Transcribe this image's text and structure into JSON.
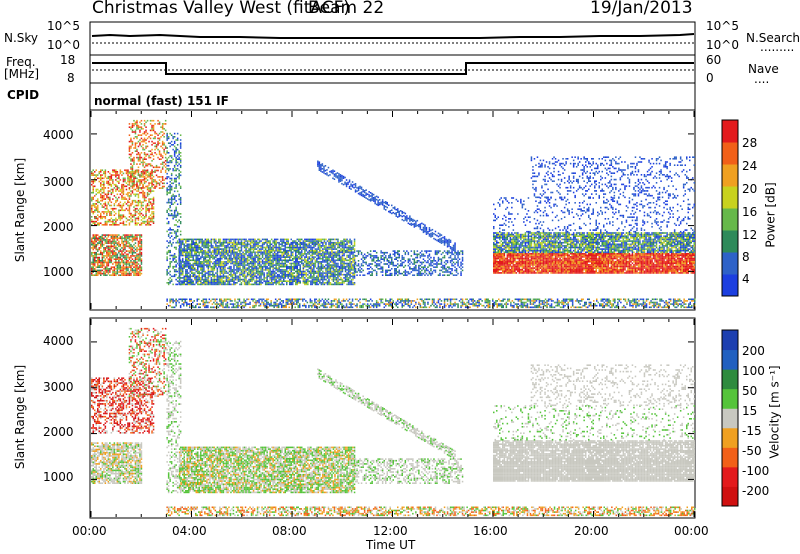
{
  "header": {
    "station": "Christmas Valley West (fitACF)",
    "beam": "Beam 22",
    "date": "19/Jan/2013"
  },
  "top_panels": {
    "nsky": {
      "left_label": "N.Sky",
      "left_ticks": [
        "10^5",
        "10^0"
      ],
      "right_label": "N.Search",
      "right_ticks": [
        "10^5",
        "10^0"
      ]
    },
    "freq": {
      "left_label_line1": "Freq.",
      "left_label_line2": "[MHz]",
      "left_ticks": [
        "18",
        "8"
      ],
      "right_label": "Nave",
      "right_ticks": [
        "60",
        "0"
      ]
    },
    "cpid": {
      "label": "CPID",
      "value": "normal (fast) 151 IF"
    }
  },
  "chart_data": [
    {
      "type": "heatmap",
      "name": "power",
      "ylabel": "Slant Range [km]",
      "ylim": [
        180,
        4500
      ],
      "yticks": [
        "4000",
        "3000",
        "2000",
        "1000"
      ],
      "xlim_hours": [
        0,
        24
      ],
      "colorbar": {
        "label": "Power [dB]",
        "ticks": [
          "28",
          "24",
          "20",
          "16",
          "12",
          "8",
          "4"
        ],
        "colors": [
          "#1c3fe0",
          "#2e62c8",
          "#2e8a5a",
          "#66b84a",
          "#c8d21e",
          "#f0a020",
          "#f26018",
          "#e31a1c"
        ]
      }
    },
    {
      "type": "heatmap",
      "name": "velocity",
      "ylabel": "Slant Range [km]",
      "ylim": [
        180,
        4500
      ],
      "yticks": [
        "4000",
        "3000",
        "2000",
        "1000"
      ],
      "xlim_hours": [
        0,
        24
      ],
      "xlabel": "Time UT",
      "xticks": [
        "00:00",
        "04:00",
        "08:00",
        "12:00",
        "16:00",
        "20:00",
        "00:00"
      ],
      "colorbar": {
        "label": "Velocity [m s⁻¹]",
        "ticks": [
          "200",
          "100",
          "50",
          "15",
          "-15",
          "-50",
          "-100",
          "-200"
        ],
        "colors": [
          "#1c3fb0",
          "#2060c0",
          "#2e8b3e",
          "#55c43a",
          "#c8c8c0",
          "#f0a020",
          "#f26018",
          "#e31a1c",
          "#d01010"
        ]
      }
    }
  ]
}
